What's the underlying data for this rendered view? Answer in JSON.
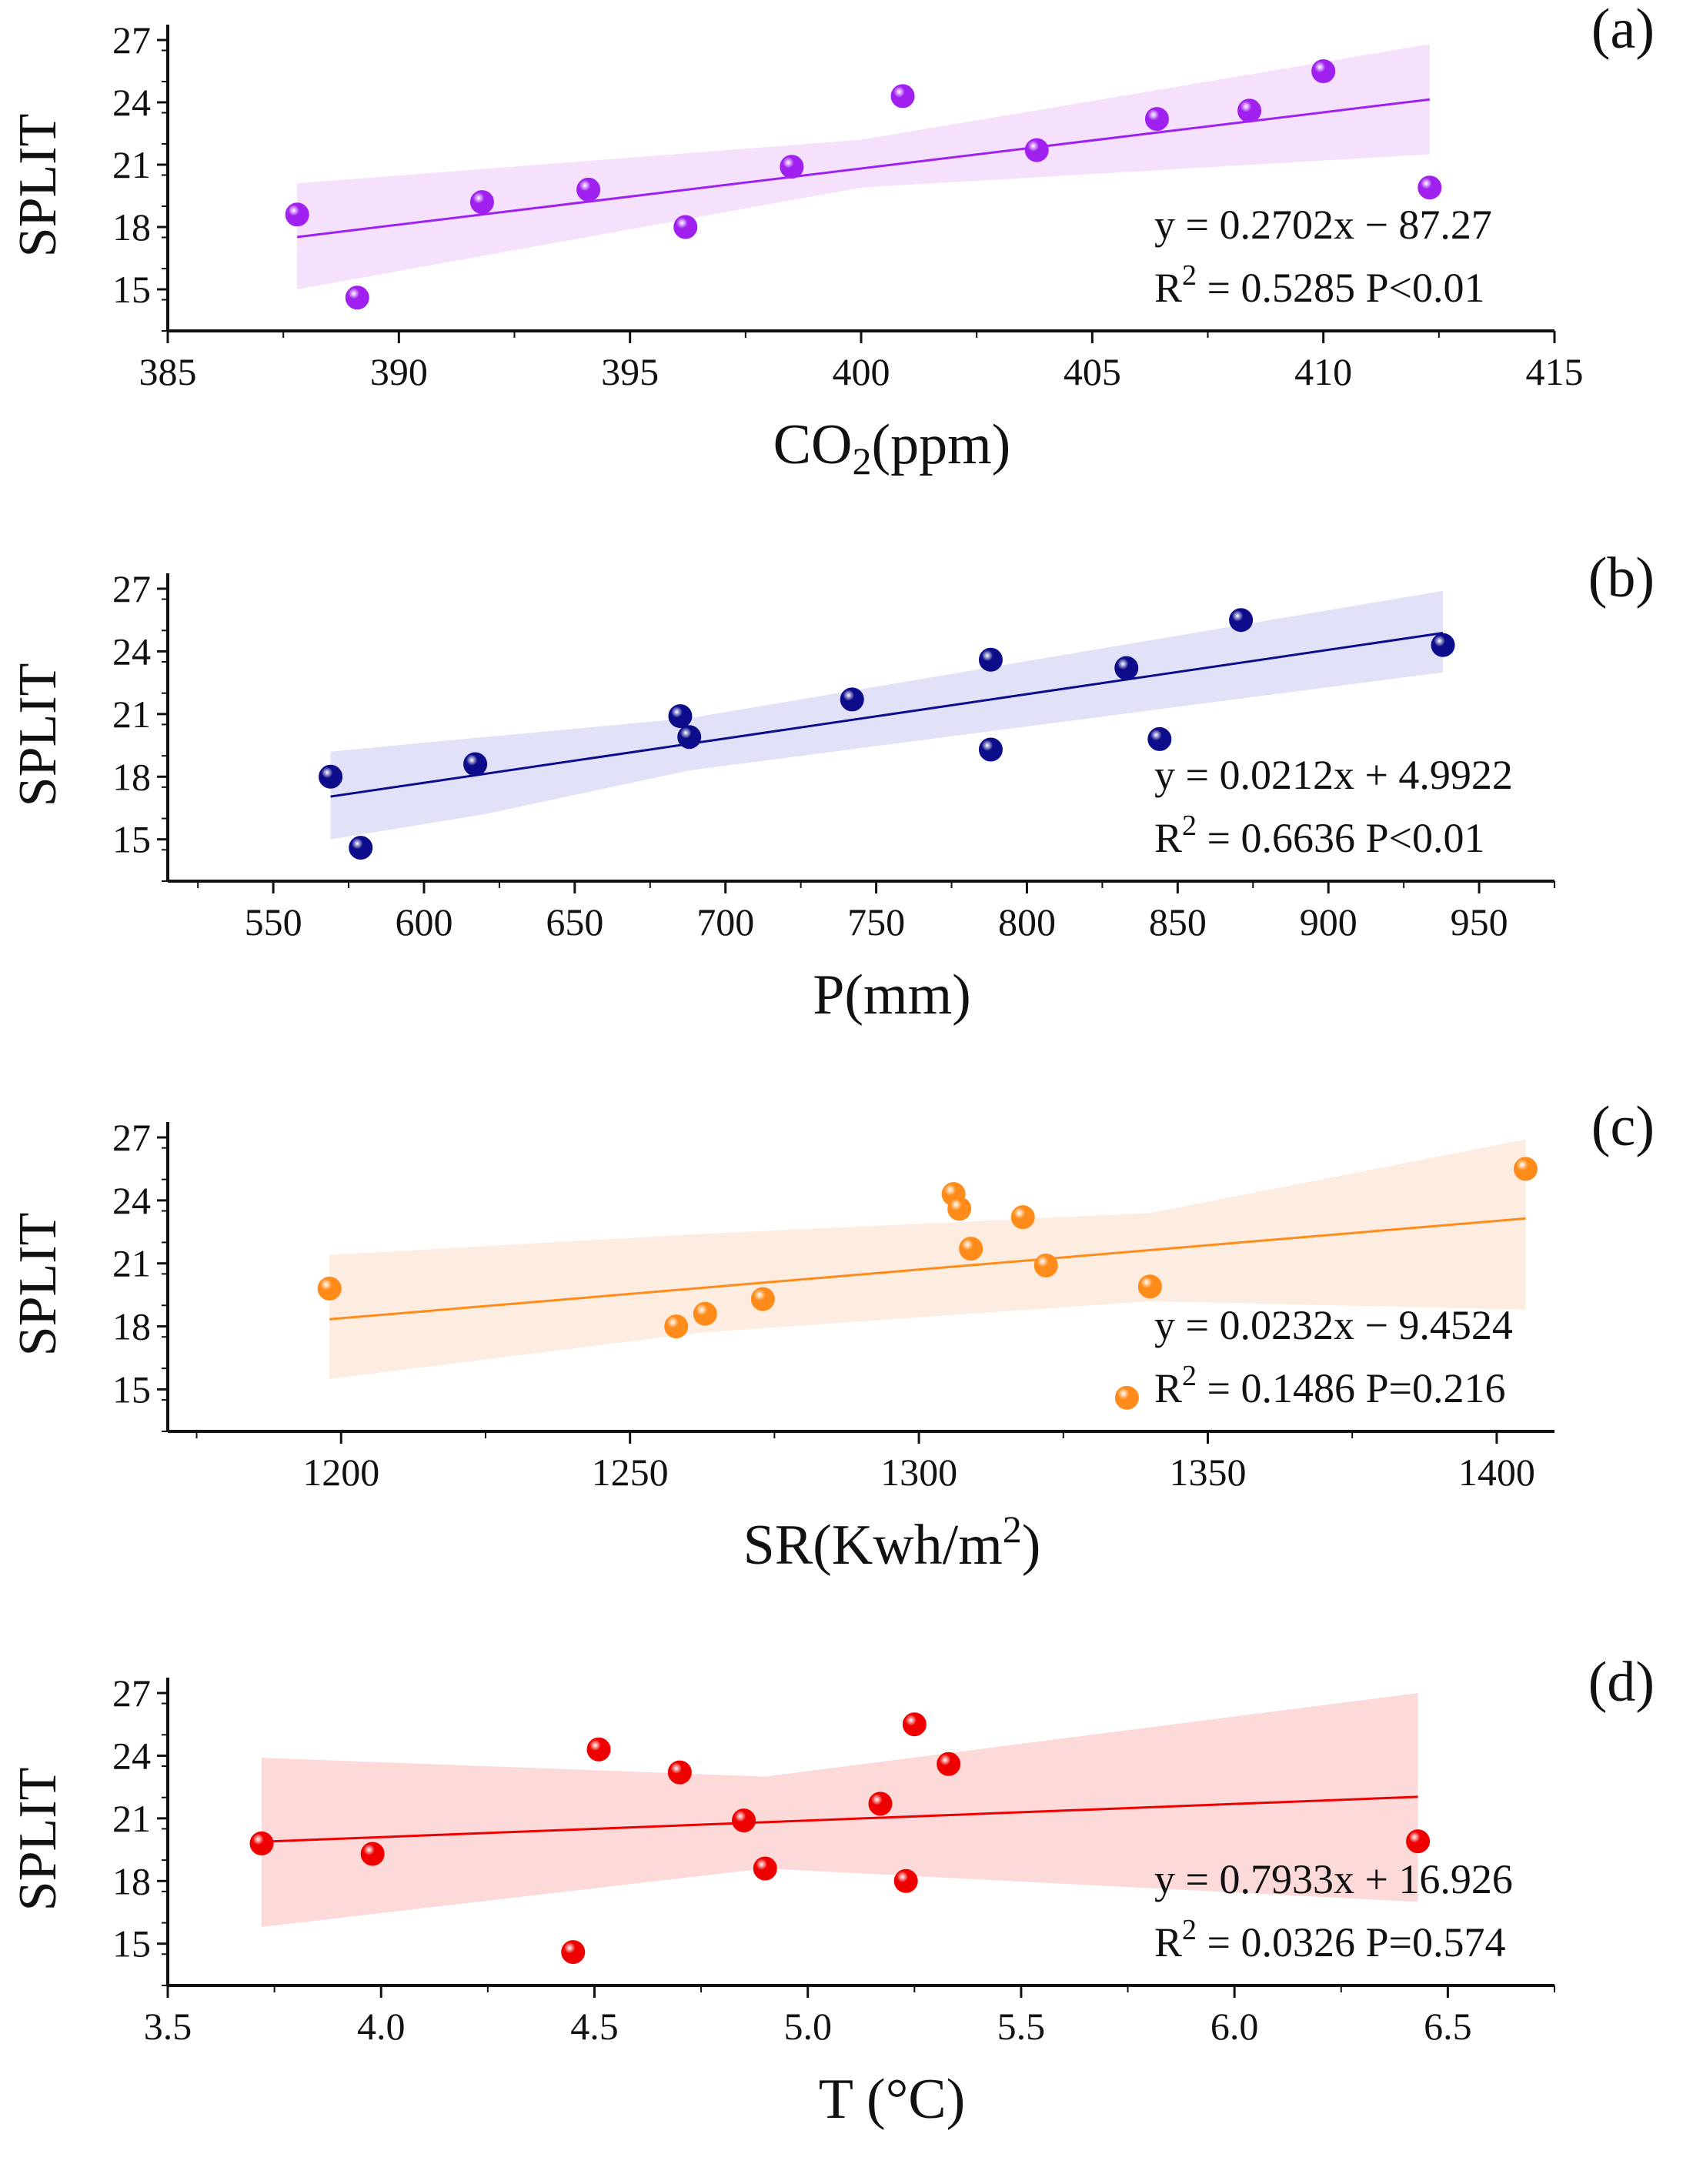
{
  "chart_data": [
    {
      "type": "scatter",
      "panel_label": "(a)",
      "ylabel": "SPLIT",
      "xlabel": "CO",
      "xlabel_sub": "2",
      "xlabel_suffix": "(ppm)",
      "xlim": [
        385,
        415
      ],
      "ylim": [
        13,
        27
      ],
      "xticks": [
        385,
        390,
        395,
        400,
        405,
        410,
        415
      ],
      "yticks": [
        15,
        18,
        21,
        24,
        27
      ],
      "color": "#a020f0",
      "band_color": "#f3dcfb",
      "points": [
        {
          "x": 387.8,
          "y": 18.6
        },
        {
          "x": 389.1,
          "y": 14.6
        },
        {
          "x": 391.8,
          "y": 19.2
        },
        {
          "x": 394.1,
          "y": 19.8
        },
        {
          "x": 396.2,
          "y": 18.0
        },
        {
          "x": 398.5,
          "y": 20.9
        },
        {
          "x": 400.9,
          "y": 24.3
        },
        {
          "x": 403.8,
          "y": 21.7
        },
        {
          "x": 406.4,
          "y": 23.2
        },
        {
          "x": 408.4,
          "y": 23.6
        },
        {
          "x": 410.0,
          "y": 25.5
        },
        {
          "x": 412.3,
          "y": 19.9
        }
      ],
      "fit": {
        "x0": 387.8,
        "y0": 17.52,
        "x1": 412.3,
        "y1": 24.14
      },
      "band": [
        [
          387.8,
          15.0,
          20.1
        ],
        [
          400,
          19.9,
          22.2
        ],
        [
          412.3,
          21.5,
          26.8
        ]
      ],
      "eq": "y = 0.2702x − 87.27",
      "r2_prefix": "R",
      "r2_sup": "2",
      "r2_rest": " = 0.5285 P<0.01"
    },
    {
      "type": "scatter",
      "panel_label": "(b)",
      "ylabel": "SPLIT",
      "xlabel": "P(mm)",
      "xlabel_sub": "",
      "xlabel_suffix": "",
      "xlim": [
        515,
        975
      ],
      "ylim": [
        13,
        27
      ],
      "xticks": [
        550,
        600,
        650,
        700,
        750,
        800,
        850,
        900,
        950
      ],
      "yticks": [
        15,
        18,
        21,
        24,
        27
      ],
      "color": "#0d0d8c",
      "band_color": "#dcdcf6",
      "points": [
        {
          "x": 569,
          "y": 18.0
        },
        {
          "x": 579,
          "y": 14.6
        },
        {
          "x": 617,
          "y": 18.6
        },
        {
          "x": 685,
          "y": 20.9
        },
        {
          "x": 688,
          "y": 19.9
        },
        {
          "x": 742,
          "y": 21.7
        },
        {
          "x": 788,
          "y": 23.6
        },
        {
          "x": 788,
          "y": 19.3
        },
        {
          "x": 833,
          "y": 23.2
        },
        {
          "x": 844,
          "y": 19.8
        },
        {
          "x": 871,
          "y": 25.5
        },
        {
          "x": 938,
          "y": 24.3
        }
      ],
      "fit": {
        "x0": 569,
        "y0": 17.05,
        "x1": 938,
        "y1": 24.88
      },
      "band": [
        [
          569,
          15.0,
          19.2
        ],
        [
          620,
          16.2,
          19.9
        ],
        [
          688,
          18.3,
          20.8
        ],
        [
          938,
          23.0,
          26.9
        ]
      ],
      "eq": "y = 0.0212x + 4.9922",
      "r2_prefix": "R",
      "r2_sup": "2",
      "r2_rest": " = 0.6636  P<0.01"
    },
    {
      "type": "scatter",
      "panel_label": "(c)",
      "ylabel": "SPLIT",
      "xlabel": "SR(Kwh/m",
      "xlabel_sub": "",
      "xlabel_sup": "2",
      "xlabel_suffix": ")",
      "xlim": [
        1170,
        1410
      ],
      "ylim": [
        13,
        27
      ],
      "xticks": [
        1200,
        1250,
        1300,
        1350,
        1400
      ],
      "yticks": [
        15,
        18,
        21,
        24,
        27
      ],
      "color": "#ff8c1a",
      "band_color": "#fde9da",
      "points": [
        {
          "x": 1198,
          "y": 19.8
        },
        {
          "x": 1258,
          "y": 18.0
        },
        {
          "x": 1263,
          "y": 18.6
        },
        {
          "x": 1273,
          "y": 19.3
        },
        {
          "x": 1306,
          "y": 24.3
        },
        {
          "x": 1307,
          "y": 23.6
        },
        {
          "x": 1309,
          "y": 21.7
        },
        {
          "x": 1318,
          "y": 23.2
        },
        {
          "x": 1322,
          "y": 20.9
        },
        {
          "x": 1336,
          "y": 14.6
        },
        {
          "x": 1340,
          "y": 19.9
        },
        {
          "x": 1405,
          "y": 25.5
        }
      ],
      "fit": {
        "x0": 1198,
        "y0": 18.34,
        "x1": 1405,
        "y1": 23.14
      },
      "band": [
        [
          1198,
          15.5,
          21.4
        ],
        [
          1262,
          17.7,
          22.4
        ],
        [
          1340,
          19.2,
          23.4
        ],
        [
          1405,
          18.8,
          26.9
        ]
      ],
      "eq": "y = 0.0232x − 9.4524",
      "r2_prefix": "R",
      "r2_sup": "2",
      "r2_rest": " = 0.1486 P=0.216"
    },
    {
      "type": "scatter",
      "panel_label": "(d)",
      "ylabel": "SPLIT",
      "xlabel": "T (°C)",
      "xlabel_sub": "",
      "xlabel_suffix": "",
      "xlim": [
        3.5,
        6.75
      ],
      "ylim": [
        13,
        27
      ],
      "xticks": [
        3.5,
        4.0,
        4.5,
        5.0,
        5.5,
        6.0,
        6.5
      ],
      "yticks": [
        15,
        18,
        21,
        24,
        27
      ],
      "color": "#ee0000",
      "band_color": "#fbd4d4",
      "points": [
        {
          "x": 3.72,
          "y": 19.8
        },
        {
          "x": 3.98,
          "y": 19.3
        },
        {
          "x": 4.45,
          "y": 14.6
        },
        {
          "x": 4.51,
          "y": 24.3
        },
        {
          "x": 4.7,
          "y": 23.2
        },
        {
          "x": 4.85,
          "y": 20.9
        },
        {
          "x": 4.9,
          "y": 18.6
        },
        {
          "x": 5.17,
          "y": 21.7
        },
        {
          "x": 5.23,
          "y": 18.0
        },
        {
          "x": 5.25,
          "y": 25.5
        },
        {
          "x": 5.33,
          "y": 23.6
        },
        {
          "x": 6.43,
          "y": 19.9
        }
      ],
      "fit": {
        "x0": 3.72,
        "y0": 19.88,
        "x1": 6.43,
        "y1": 22.03
      },
      "band": [
        [
          3.72,
          15.8,
          23.9
        ],
        [
          4.9,
          18.6,
          23.0
        ],
        [
          6.43,
          17.0,
          27.0
        ]
      ],
      "eq": "y = 0.7933x + 16.926",
      "r2_prefix": "R",
      "r2_sup": "2",
      "r2_rest": " = 0.0326 P=0.574"
    }
  ]
}
